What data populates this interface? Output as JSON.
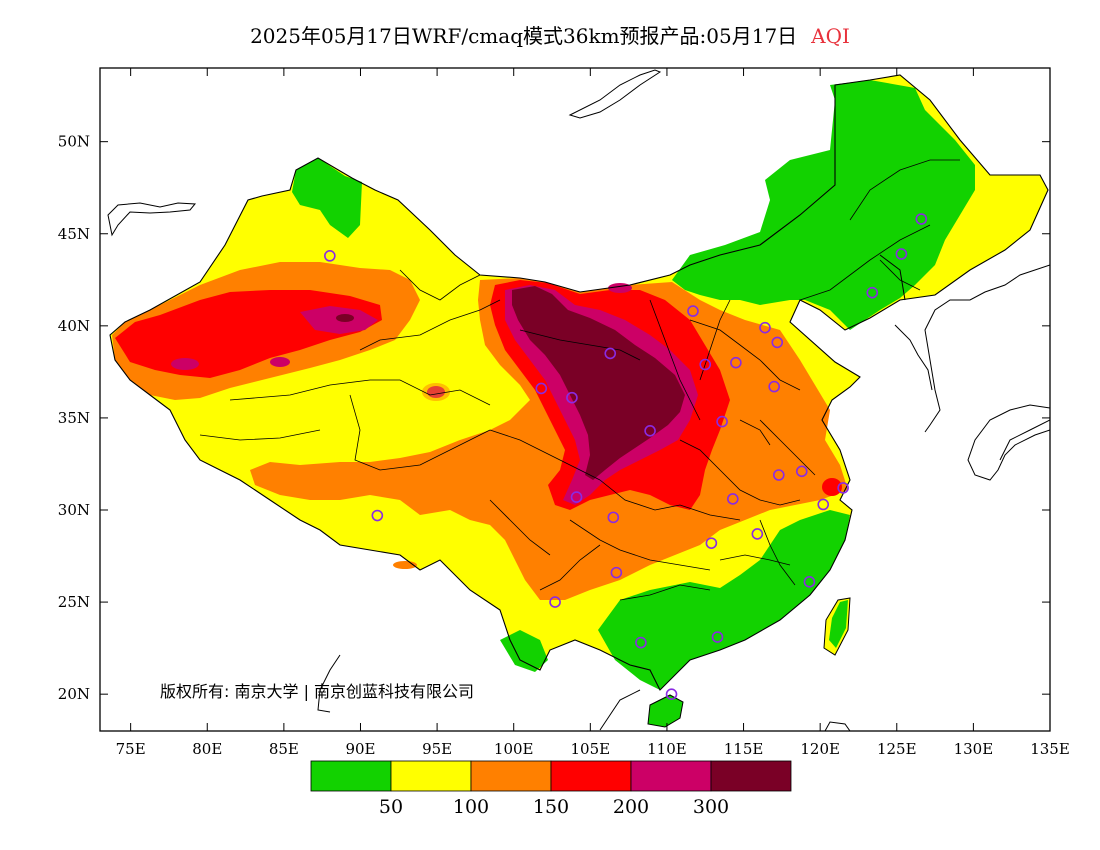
{
  "title": {
    "main": "2025年05月17日WRF/cmaq模式36km预报产品:05月17日",
    "variable": "AQI"
  },
  "axes": {
    "lon_range": [
      73,
      135
    ],
    "lat_range": [
      18,
      54
    ],
    "x_ticks": [
      "75E",
      "80E",
      "85E",
      "90E",
      "95E",
      "100E",
      "105E",
      "110E",
      "115E",
      "120E",
      "125E",
      "130E",
      "135E"
    ],
    "x_values": [
      75,
      80,
      85,
      90,
      95,
      100,
      105,
      110,
      115,
      120,
      125,
      130,
      135
    ],
    "y_ticks": [
      "20N",
      "25N",
      "30N",
      "35N",
      "40N",
      "45N",
      "50N"
    ],
    "y_values": [
      20,
      25,
      30,
      35,
      40,
      45,
      50
    ]
  },
  "legend": {
    "colors": [
      "#12d200",
      "#ffff00",
      "#ff8000",
      "#ff0000",
      "#cc0066",
      "#7a0026"
    ],
    "labels": [
      "50",
      "100",
      "150",
      "200",
      "300"
    ]
  },
  "copyright": "版权所有: 南京大学 | 南京创蓝科技有限公司",
  "stations": [
    {
      "lon": 88.0,
      "lat": 43.8
    },
    {
      "lon": 91.1,
      "lat": 29.7
    },
    {
      "lon": 101.8,
      "lat": 36.6
    },
    {
      "lon": 103.8,
      "lat": 36.1
    },
    {
      "lon": 106.3,
      "lat": 38.5
    },
    {
      "lon": 108.9,
      "lat": 34.3
    },
    {
      "lon": 111.7,
      "lat": 40.8
    },
    {
      "lon": 112.5,
      "lat": 37.9
    },
    {
      "lon": 114.5,
      "lat": 38.0
    },
    {
      "lon": 116.4,
      "lat": 39.9
    },
    {
      "lon": 117.2,
      "lat": 39.1
    },
    {
      "lon": 117.0,
      "lat": 36.7
    },
    {
      "lon": 113.6,
      "lat": 34.8
    },
    {
      "lon": 104.1,
      "lat": 30.7
    },
    {
      "lon": 106.5,
      "lat": 29.6
    },
    {
      "lon": 106.7,
      "lat": 26.6
    },
    {
      "lon": 102.7,
      "lat": 25.0
    },
    {
      "lon": 108.3,
      "lat": 22.8
    },
    {
      "lon": 113.3,
      "lat": 23.1
    },
    {
      "lon": 110.3,
      "lat": 20.0
    },
    {
      "lon": 112.9,
      "lat": 28.2
    },
    {
      "lon": 114.3,
      "lat": 30.6
    },
    {
      "lon": 115.9,
      "lat": 28.7
    },
    {
      "lon": 117.3,
      "lat": 31.9
    },
    {
      "lon": 118.8,
      "lat": 32.1
    },
    {
      "lon": 120.2,
      "lat": 30.3
    },
    {
      "lon": 121.5,
      "lat": 31.2
    },
    {
      "lon": 119.3,
      "lat": 26.1
    },
    {
      "lon": 123.4,
      "lat": 41.8
    },
    {
      "lon": 125.3,
      "lat": 43.9
    },
    {
      "lon": 126.6,
      "lat": 45.8
    }
  ]
}
